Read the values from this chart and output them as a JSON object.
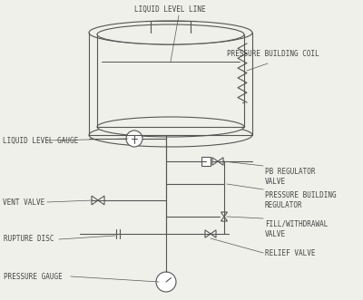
{
  "bg_color": "#f0f0eb",
  "line_color": "#555555",
  "text_color": "#444444",
  "font_size": 5.5,
  "labels": {
    "pressure_gauge": "PRESSURE GAUGE",
    "rupture_disc": "RUPTURE DISC",
    "vent_valve": "VENT VALVE",
    "liquid_level_gauge": "LIQUID LEVEL GAUGE",
    "relief_valve": "RELIEF VALVE",
    "fill_withdrawal_valve": "FILL/WITHDRAWAL\nVALVE",
    "pressure_building_regulator": "PRESSURE BUILDING\nREGULATOR",
    "pb_regulator_valve": "PB REGULATOR\nVALVE",
    "pressure_building_coil": "PRESSURE BUILDING COIL",
    "liquid_level_line": "LIQUID LEVEL LINE"
  }
}
